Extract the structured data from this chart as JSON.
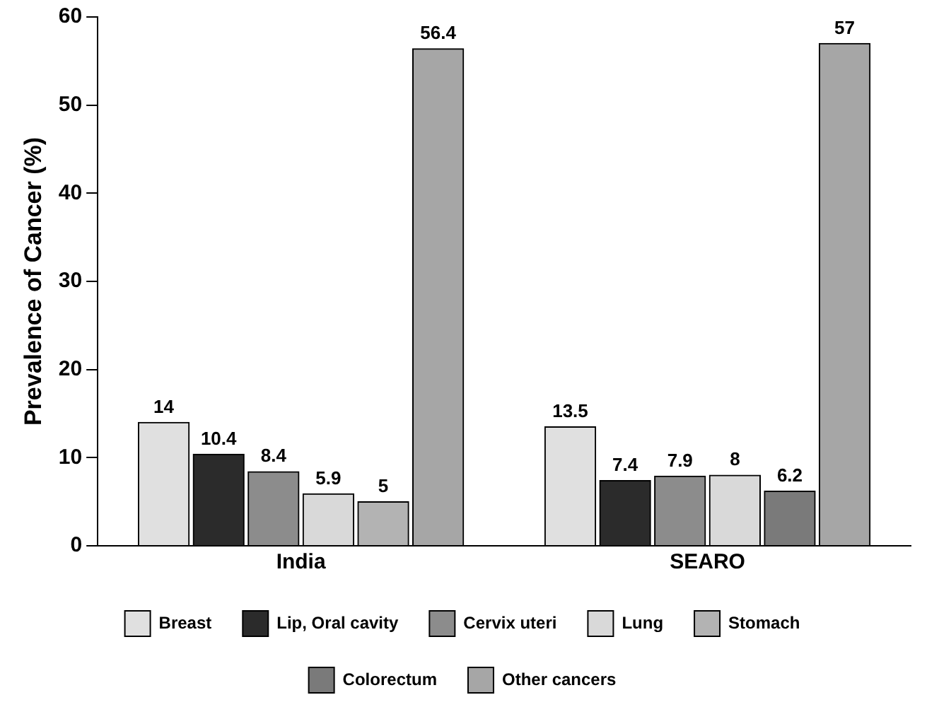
{
  "chart_data": {
    "type": "bar",
    "ylabel": "Prevalence of Cancer (%)",
    "categories": [
      "India",
      "SEARO"
    ],
    "series": [
      {
        "name": "Breast",
        "color": "#e0e0e0",
        "values": [
          14,
          13.5
        ]
      },
      {
        "name": "Lip, Oral cavity",
        "color": "#2b2b2b",
        "values": [
          10.4,
          7.4
        ]
      },
      {
        "name": "Cervix uteri",
        "color": "#8c8c8c",
        "values": [
          8.4,
          7.9
        ]
      },
      {
        "name": "Lung",
        "color": "#d9d9d9",
        "values": [
          5.9,
          8
        ]
      },
      {
        "name": "Stomach",
        "color": "#b3b3b3",
        "values": [
          5,
          null
        ]
      },
      {
        "name": "Colorectum",
        "color": "#7a7a7a",
        "values": [
          null,
          6.2
        ]
      },
      {
        "name": "Other cancers",
        "color": "#a6a6a6",
        "values": [
          56.4,
          57
        ]
      }
    ],
    "ylim": [
      0,
      60
    ],
    "yticks": [
      0,
      10,
      20,
      30,
      40,
      50,
      60
    ],
    "grid": false,
    "legend": "bottom",
    "data_labels": true
  }
}
